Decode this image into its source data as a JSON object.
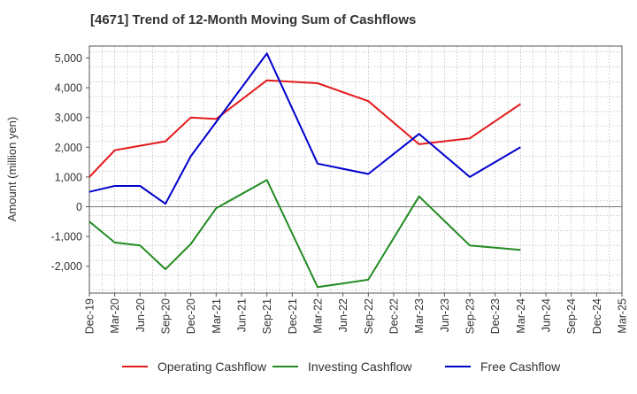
{
  "chart_data": {
    "type": "line",
    "title": "[4671]  Trend of 12-Month Moving Sum of Cashflows",
    "xlabel": "",
    "ylabel": "Amount (million yen)",
    "categories": [
      "Dec-19",
      "Mar-20",
      "Jun-20",
      "Sep-20",
      "Dec-20",
      "Mar-21",
      "Jun-21",
      "Sep-21",
      "Dec-21",
      "Mar-22",
      "Jun-22",
      "Sep-22",
      "Dec-22",
      "Mar-23",
      "Jun-23",
      "Sep-23",
      "Dec-23",
      "Mar-24",
      "Jun-24",
      "Sep-24",
      "Dec-24",
      "Mar-25"
    ],
    "ylim": [
      -2900,
      5400
    ],
    "yticks": [
      5000,
      4000,
      3000,
      2000,
      1000,
      0,
      -1000,
      -2000
    ],
    "ytick_labels": [
      "5,000",
      "4,000",
      "3,000",
      "2,000",
      "1,000",
      "0",
      "-1,000",
      "-2,000"
    ],
    "grid": true,
    "legend_position": "bottom",
    "series": [
      {
        "name": "Operating Cashflow",
        "color": "#e31a1c",
        "values": [
          1000,
          1900,
          2050,
          2200,
          3000,
          2950,
          null,
          4250,
          null,
          4150,
          null,
          3550,
          null,
          2100,
          null,
          2300,
          null,
          3450,
          null,
          null,
          null,
          null
        ]
      },
      {
        "name": "Investing Cashflow",
        "color": "#228b22",
        "values": [
          -500,
          -1200,
          -1300,
          -2100,
          -1250,
          -50,
          null,
          900,
          null,
          -2700,
          null,
          -2450,
          null,
          350,
          null,
          -1300,
          null,
          -1450,
          null,
          null,
          null,
          null
        ]
      },
      {
        "name": "Free Cashflow",
        "color": "#0000cd",
        "values": [
          500,
          700,
          700,
          100,
          1700,
          null,
          null,
          5150,
          null,
          1450,
          null,
          1100,
          null,
          2450,
          null,
          1000,
          null,
          2000,
          null,
          null,
          null,
          null
        ]
      }
    ]
  }
}
